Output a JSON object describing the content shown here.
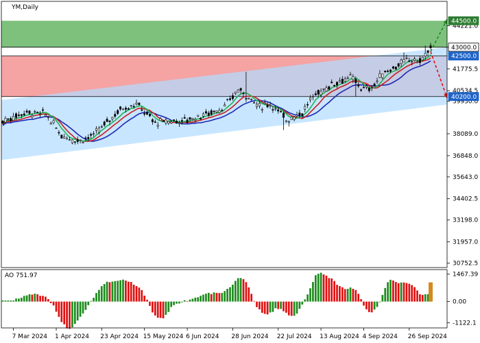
{
  "chart_data": {
    "type": "candlestick",
    "symbol_label": "YM,Daily",
    "ao_label": "AO 751.97",
    "price_axis": {
      "ticks": [
        44221.0,
        42998.0,
        41775.5,
        40534.5,
        39930.0,
        38089.0,
        36848.0,
        35643.0,
        34402.5,
        33198.0,
        31957.0,
        30752.5
      ],
      "tick_labels": [
        "44221.0",
        "",
        "41775.5",
        "40534.5",
        "39930.0",
        "38089.0",
        "36848.0",
        "35643.0",
        "34402.5",
        "33198.0",
        "31957.0",
        "30752.5"
      ],
      "range": [
        30500,
        45600
      ]
    },
    "ao_axis": {
      "ticks": [
        1467.39,
        0.0,
        -1122.1
      ],
      "tick_labels": [
        "1467.39",
        "0.00",
        "-1122.1"
      ],
      "range": [
        -1400,
        1700
      ]
    },
    "date_labels": [
      "7 Mar 2024",
      "1 Apr 2024",
      "23 Apr 2024",
      "15 May 2024",
      "6 Jun 2024",
      "28 Jun 2024",
      "22 Jul 2024",
      "13 Aug 2024",
      "4 Sep 2024",
      "26 Sep 2024"
    ],
    "levels": [
      {
        "price": 44500.0,
        "label": "44500.0",
        "color": "#2e7d32"
      },
      {
        "price": 43000.0,
        "label": "43000.0",
        "color": "#ffffff"
      },
      {
        "price": 42500.0,
        "label": "42500.0",
        "color": "#1e64c8"
      },
      {
        "price": 40200.0,
        "label": "40200.0",
        "color": "#1e64c8"
      }
    ],
    "zones": [
      {
        "name": "buy-target-zone",
        "from": 43000.0,
        "to": 44500.0,
        "color": "#7dc17d"
      },
      {
        "name": "sell-target-zone",
        "from": 40200.0,
        "to": 42500.0,
        "color": "#f5a3a3"
      }
    ],
    "channel": {
      "color": "#b3dcff",
      "start": {
        "date": "7 Mar 2024",
        "upper": 40000,
        "lower": 36600
      },
      "end": {
        "date": "2 Oct 2024",
        "upper": 43000,
        "lower": 39750
      }
    },
    "arrows": [
      {
        "direction": "up",
        "target": 44500.0,
        "color": "#1e8c1e"
      },
      {
        "direction": "down",
        "target": 40200.0,
        "color": "#e01010"
      }
    ],
    "close_anchors": [
      [
        0,
        38800
      ],
      [
        8,
        39300
      ],
      [
        16,
        39200
      ],
      [
        22,
        38000
      ],
      [
        28,
        37700
      ],
      [
        34,
        38000
      ],
      [
        44,
        39500
      ],
      [
        50,
        39800
      ],
      [
        57,
        38700
      ],
      [
        62,
        38800
      ],
      [
        68,
        38850
      ],
      [
        76,
        39200
      ],
      [
        83,
        39600
      ],
      [
        88,
        40600
      ],
      [
        92,
        40200
      ],
      [
        96,
        39600
      ],
      [
        100,
        39800
      ],
      [
        106,
        38900
      ],
      [
        112,
        39300
      ],
      [
        116,
        40200
      ],
      [
        124,
        41000
      ],
      [
        130,
        41300
      ],
      [
        135,
        40600
      ],
      [
        138,
        40700
      ],
      [
        142,
        41500
      ],
      [
        148,
        42000
      ],
      [
        152,
        42300
      ],
      [
        156,
        42200
      ],
      [
        160,
        42900
      ]
    ],
    "ao_color_up": "#1e8c1e",
    "ao_color_down": "#e01010"
  }
}
